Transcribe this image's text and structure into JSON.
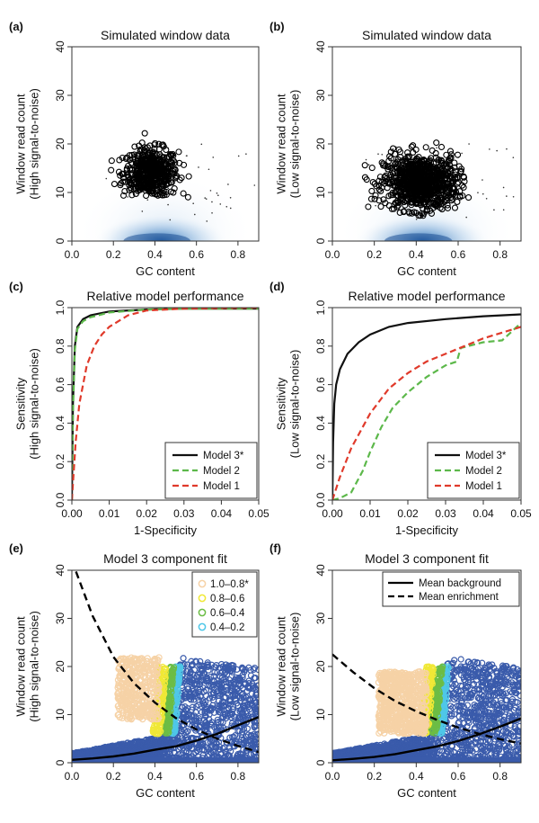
{
  "panels": {
    "a": {
      "label": "(a)",
      "chart_data": {
        "type": "scatter",
        "title": "Simulated window data",
        "xlabel": "GC content",
        "ylabel": [
          "Window read count",
          "(High signal-to-noise)"
        ],
        "xlim": [
          0,
          0.9
        ],
        "ylim": [
          0,
          40
        ],
        "xticks": [
          0.0,
          0.2,
          0.4,
          0.6,
          0.8
        ],
        "xtick_labels": [
          "0.0",
          "0.2",
          "0.4",
          "0.6",
          "0.8"
        ],
        "yticks": [
          0,
          10,
          20,
          30,
          40
        ],
        "ytick_labels": [
          "0",
          "10",
          "20",
          "30",
          "40"
        ],
        "background": {
          "name": "background density",
          "center_x": 0.45,
          "center_y": 0,
          "spread_x": 0.15,
          "spread_y": 6
        },
        "enriched_cluster": {
          "name": "enriched windows",
          "x_range": [
            0.22,
            0.55
          ],
          "y_range": [
            9,
            24
          ],
          "center_x": 0.38,
          "center_y": 14
        }
      }
    },
    "b": {
      "label": "(b)",
      "chart_data": {
        "type": "scatter",
        "title": "Simulated window data",
        "xlabel": "GC content",
        "ylabel": [
          "Window read count",
          "(Low signal-to-noise)"
        ],
        "xlim": [
          0,
          0.9
        ],
        "ylim": [
          0,
          40
        ],
        "xticks": [
          0.0,
          0.2,
          0.4,
          0.6,
          0.8
        ],
        "xtick_labels": [
          "0.0",
          "0.2",
          "0.4",
          "0.6",
          "0.8"
        ],
        "yticks": [
          0,
          10,
          20,
          30,
          40
        ],
        "ytick_labels": [
          "0",
          "10",
          "20",
          "30",
          "40"
        ],
        "background": {
          "name": "background density",
          "center_x": 0.45,
          "center_y": 0,
          "spread_x": 0.15,
          "spread_y": 6
        },
        "enriched_cluster": {
          "name": "enriched windows",
          "x_range": [
            0.18,
            0.62
          ],
          "y_range": [
            5,
            22
          ],
          "center_x": 0.42,
          "center_y": 12
        }
      }
    },
    "c": {
      "label": "(c)",
      "chart_data": {
        "type": "line",
        "title": "Relative model performance",
        "xlabel": "1-Specificity",
        "ylabel": [
          "Sensitivity",
          "(High signal-to-noise)"
        ],
        "xlim": [
          0,
          0.05
        ],
        "ylim": [
          0,
          1
        ],
        "xticks": [
          0.0,
          0.01,
          0.02,
          0.03,
          0.04,
          0.05
        ],
        "xtick_labels": [
          "0.00",
          "0.01",
          "0.02",
          "0.03",
          "0.04",
          "0.05"
        ],
        "yticks": [
          0,
          0.2,
          0.4,
          0.6,
          0.8,
          1.0
        ],
        "ytick_labels": [
          "0.0",
          "0.2",
          "0.4",
          "0.6",
          "0.8",
          "1.0"
        ],
        "legend": "bottom-right",
        "series": [
          {
            "name": "Model 3*",
            "color": "#111111",
            "dash": "solid",
            "x": [
              0,
              0.0003,
              0.0008,
              0.0015,
              0.003,
              0.005,
              0.01,
              0.02,
              0.03,
              0.05
            ],
            "y": [
              0,
              0.5,
              0.8,
              0.9,
              0.94,
              0.96,
              0.98,
              0.99,
              0.995,
              0.995
            ]
          },
          {
            "name": "Model 2",
            "color": "#5cb84a",
            "dash": "dashed",
            "x": [
              0,
              0.0003,
              0.0008,
              0.0015,
              0.003,
              0.005,
              0.01,
              0.02,
              0.03,
              0.05
            ],
            "y": [
              0,
              0.45,
              0.78,
              0.89,
              0.93,
              0.95,
              0.975,
              0.99,
              0.995,
              0.995
            ]
          },
          {
            "name": "Model 1",
            "color": "#e03a2b",
            "dash": "dashed",
            "x": [
              0,
              0.001,
              0.002,
              0.004,
              0.006,
              0.008,
              0.01,
              0.015,
              0.02,
              0.03,
              0.05
            ],
            "y": [
              0,
              0.3,
              0.5,
              0.7,
              0.8,
              0.86,
              0.9,
              0.96,
              0.985,
              0.995,
              1.0
            ]
          }
        ]
      }
    },
    "d": {
      "label": "(d)",
      "chart_data": {
        "type": "line",
        "title": "Relative model performance",
        "xlabel": "1-Specificity",
        "ylabel": [
          "Sensitivity",
          "(Low signal-to-noise)"
        ],
        "xlim": [
          0,
          0.05
        ],
        "ylim": [
          0,
          1
        ],
        "xticks": [
          0.0,
          0.01,
          0.02,
          0.03,
          0.04,
          0.05
        ],
        "xtick_labels": [
          "0.00",
          "0.01",
          "0.02",
          "0.03",
          "0.04",
          "0.05"
        ],
        "yticks": [
          0,
          0.2,
          0.4,
          0.6,
          0.8,
          1.0
        ],
        "ytick_labels": [
          "0.0",
          "0.2",
          "0.4",
          "0.6",
          "0.8",
          "1.0"
        ],
        "legend": "bottom-right",
        "series": [
          {
            "name": "Model 3*",
            "color": "#111111",
            "dash": "solid",
            "x": [
              0,
              0.0002,
              0.0005,
              0.001,
              0.002,
              0.004,
              0.007,
              0.01,
              0.015,
              0.02,
              0.03,
              0.04,
              0.05
            ],
            "y": [
              0,
              0.3,
              0.5,
              0.6,
              0.68,
              0.76,
              0.82,
              0.86,
              0.9,
              0.92,
              0.94,
              0.955,
              0.965
            ]
          },
          {
            "name": "Model 2",
            "color": "#5cb84a",
            "dash": "dashed",
            "x": [
              0,
              0.002,
              0.005,
              0.008,
              0.01,
              0.013,
              0.016,
              0.02,
              0.025,
              0.03,
              0.033,
              0.034,
              0.04,
              0.045,
              0.05
            ],
            "y": [
              0,
              0.01,
              0.04,
              0.15,
              0.25,
              0.38,
              0.48,
              0.56,
              0.64,
              0.7,
              0.72,
              0.79,
              0.82,
              0.83,
              0.92
            ]
          },
          {
            "name": "Model 1",
            "color": "#e03a2b",
            "dash": "dashed",
            "x": [
              0,
              0.002,
              0.005,
              0.01,
              0.015,
              0.02,
              0.025,
              0.03,
              0.035,
              0.04,
              0.045,
              0.05
            ],
            "y": [
              0,
              0.12,
              0.27,
              0.45,
              0.58,
              0.66,
              0.72,
              0.76,
              0.8,
              0.84,
              0.87,
              0.9
            ]
          }
        ]
      }
    },
    "e": {
      "label": "(e)",
      "chart_data": {
        "type": "scatter",
        "title": "Model 3 component fit",
        "xlabel": "GC content",
        "ylabel": [
          "Window read count",
          "(High signal-to-noise)"
        ],
        "xlim": [
          0,
          0.9
        ],
        "ylim": [
          0,
          40
        ],
        "xticks": [
          0.0,
          0.2,
          0.4,
          0.6,
          0.8
        ],
        "xtick_labels": [
          "0.0",
          "0.2",
          "0.4",
          "0.6",
          "0.8"
        ],
        "yticks": [
          0,
          10,
          20,
          30,
          40
        ],
        "ytick_labels": [
          "0",
          "10",
          "20",
          "30",
          "40"
        ],
        "legend": "top-right",
        "legend_entries": [
          {
            "label": "1.0–0.8*",
            "color": "#f6d2a6"
          },
          {
            "label": "0.8–0.6",
            "color": "#f0e836"
          },
          {
            "label": "0.6–0.4",
            "color": "#6cbd45"
          },
          {
            "label": "0.4–0.2",
            "color": "#4fc7e8"
          }
        ],
        "groups": [
          {
            "name": "background",
            "color": "#3a5bab"
          },
          {
            "name": "1.0–0.8*",
            "color": "#f6d2a6"
          },
          {
            "name": "0.8–0.6",
            "color": "#f0e836"
          },
          {
            "name": "0.6–0.4",
            "color": "#6cbd45"
          },
          {
            "name": "0.4–0.2",
            "color": "#4fc7e8"
          }
        ],
        "curves": [
          {
            "name": "Mean background",
            "color": "#000000",
            "dash": "solid",
            "x": [
              0.0,
              0.1,
              0.2,
              0.3,
              0.4,
              0.5,
              0.6,
              0.7,
              0.8,
              0.9
            ],
            "y": [
              0.6,
              0.9,
              1.3,
              1.9,
              2.7,
              3.4,
              4.6,
              6.0,
              7.8,
              9.5
            ]
          },
          {
            "name": "Mean enrichment",
            "color": "#000000",
            "dash": "dashed",
            "x": [
              0.0,
              0.1,
              0.2,
              0.3,
              0.4,
              0.5,
              0.6,
              0.7,
              0.8,
              0.9
            ],
            "y": [
              42.0,
              30.5,
              22.0,
              16.5,
              12.5,
              9.3,
              6.9,
              5.0,
              3.5,
              2.2
            ]
          }
        ]
      }
    },
    "f": {
      "label": "(f)",
      "chart_data": {
        "type": "scatter",
        "title": "Model 3 component fit",
        "xlabel": "GC content",
        "ylabel": [
          "Window read count",
          "(Low signal-to-noise)"
        ],
        "xlim": [
          0,
          0.9
        ],
        "ylim": [
          0,
          40
        ],
        "xticks": [
          0.0,
          0.2,
          0.4,
          0.6,
          0.8
        ],
        "xtick_labels": [
          "0.0",
          "0.2",
          "0.4",
          "0.6",
          "0.8"
        ],
        "yticks": [
          0,
          10,
          20,
          30,
          40
        ],
        "ytick_labels": [
          "0",
          "10",
          "20",
          "30",
          "40"
        ],
        "legend": "top-right",
        "legend_entries": [
          {
            "label": "Mean background",
            "dash": "solid"
          },
          {
            "label": "Mean enrichment",
            "dash": "dashed"
          }
        ],
        "groups": [
          {
            "name": "background",
            "color": "#3a5bab"
          },
          {
            "name": "1.0–0.8*",
            "color": "#f6d2a6"
          },
          {
            "name": "0.8–0.6",
            "color": "#f0e836"
          },
          {
            "name": "0.6–0.4",
            "color": "#6cbd45"
          },
          {
            "name": "0.4–0.2",
            "color": "#4fc7e8"
          }
        ],
        "curves": [
          {
            "name": "Mean background",
            "color": "#000000",
            "dash": "solid",
            "x": [
              0.0,
              0.1,
              0.2,
              0.3,
              0.4,
              0.5,
              0.6,
              0.7,
              0.8,
              0.9
            ],
            "y": [
              0.5,
              0.8,
              1.2,
              1.8,
              2.6,
              3.4,
              4.5,
              5.9,
              7.5,
              9.2
            ]
          },
          {
            "name": "Mean enrichment",
            "color": "#000000",
            "dash": "dashed",
            "x": [
              0.0,
              0.1,
              0.2,
              0.3,
              0.4,
              0.5,
              0.6,
              0.7,
              0.8,
              0.9
            ],
            "y": [
              22.5,
              18.8,
              15.5,
              12.8,
              10.7,
              8.9,
              7.3,
              6.0,
              4.9,
              4.0
            ]
          }
        ]
      }
    }
  }
}
